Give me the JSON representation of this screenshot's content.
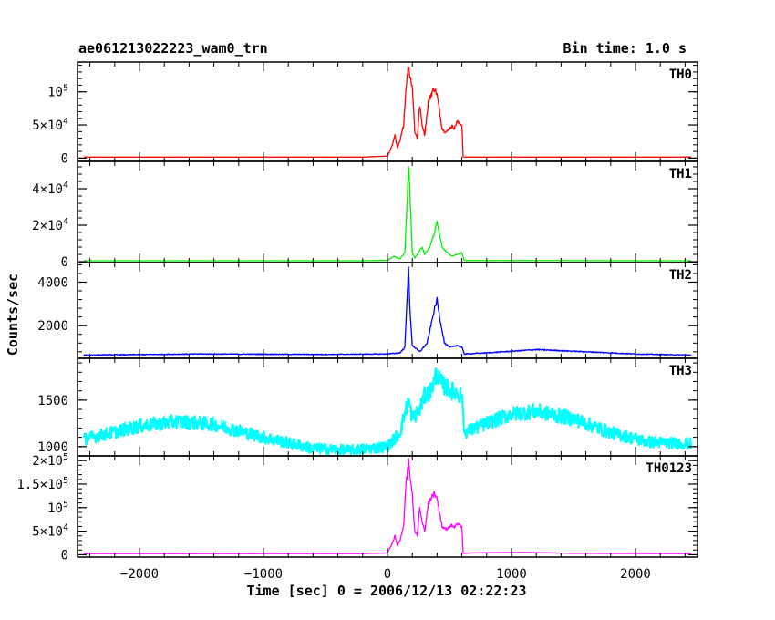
{
  "header": {
    "title": "ae061213022223_wam0_trn",
    "bin_time": "Bin time: 1.0 s"
  },
  "chart_data": {
    "type": "line",
    "xlabel": "Time [sec] 0 = 2006/12/13 02:22:23",
    "ylabel": "Counts/sec",
    "xlim": [
      -2500,
      2500
    ],
    "x_ticks": [
      -2000,
      -1000,
      0,
      1000,
      2000
    ],
    "x_tick_labels": [
      "−2000",
      "−1000",
      "0",
      "1000",
      "2000"
    ],
    "panels": [
      {
        "name": "TH0",
        "color": "#ff0000",
        "ylim": [
          -5000,
          145000
        ],
        "y_ticks": [
          0,
          50000,
          100000
        ],
        "y_tick_labels": [
          {
            "base": "0",
            "exp": ""
          },
          {
            "base": "5×10",
            "exp": "4"
          },
          {
            "base": "10",
            "exp": "5"
          }
        ],
        "series": {
          "x": [
            -2450,
            -200,
            0,
            40,
            60,
            80,
            100,
            130,
            150,
            170,
            180,
            200,
            220,
            240,
            260,
            280,
            300,
            330,
            360,
            380,
            400,
            420,
            440,
            460,
            480,
            500,
            520,
            540,
            560,
            580,
            600,
            610,
            620,
            700,
            1200,
            2450
          ],
          "y": [
            1500,
            1500,
            3000,
            20000,
            35000,
            15000,
            25000,
            50000,
            110000,
            140000,
            125000,
            110000,
            40000,
            30000,
            80000,
            50000,
            35000,
            85000,
            100000,
            105000,
            95000,
            70000,
            45000,
            40000,
            40000,
            45000,
            48000,
            45000,
            55000,
            52000,
            50000,
            2000,
            1500,
            1500,
            1500,
            1500
          ]
        }
      },
      {
        "name": "TH1",
        "color": "#00ee00",
        "ylim": [
          -500,
          55000
        ],
        "y_ticks": [
          0,
          20000,
          40000
        ],
        "y_tick_labels": [
          {
            "base": "0",
            "exp": ""
          },
          {
            "base": "2×10",
            "exp": "4"
          },
          {
            "base": "4×10",
            "exp": "4"
          }
        ],
        "series": {
          "x": [
            -2450,
            -200,
            0,
            50,
            100,
            140,
            160,
            170,
            180,
            200,
            220,
            260,
            280,
            300,
            340,
            380,
            400,
            420,
            440,
            480,
            520,
            560,
            600,
            620,
            2450
          ],
          "y": [
            500,
            500,
            700,
            3000,
            1500,
            5000,
            35000,
            54000,
            40000,
            5000,
            2000,
            6000,
            8000,
            4000,
            8000,
            16000,
            22000,
            15000,
            8000,
            5000,
            3000,
            4000,
            5000,
            600,
            500
          ]
        }
      },
      {
        "name": "TH2",
        "color": "#0000ff",
        "ylim": [
          500,
          4900
        ],
        "y_ticks": [
          2000,
          4000
        ],
        "y_tick_labels": [
          {
            "base": "2000",
            "exp": ""
          },
          {
            "base": "4000",
            "exp": ""
          }
        ],
        "series": {
          "x": [
            -2450,
            -1500,
            -500,
            0,
            100,
            140,
            160,
            170,
            180,
            200,
            260,
            320,
            380,
            400,
            420,
            460,
            500,
            560,
            600,
            620,
            800,
            1200,
            1600,
            2000,
            2450
          ],
          "y": [
            650,
            700,
            680,
            700,
            750,
            1000,
            3500,
            4800,
            2800,
            1100,
            800,
            1200,
            2800,
            3200,
            2400,
            1200,
            1000,
            1100,
            1000,
            700,
            750,
            900,
            800,
            700,
            650
          ]
        }
      },
      {
        "name": "TH3",
        "color": "#00ffff",
        "ylim": [
          900,
          1950
        ],
        "y_ticks": [
          1000,
          1500
        ],
        "y_tick_labels": [
          {
            "base": "1000",
            "exp": ""
          },
          {
            "base": "1500",
            "exp": ""
          }
        ],
        "series": {
          "x": [
            -2450,
            -2000,
            -1700,
            -1400,
            -1000,
            -600,
            -300,
            0,
            100,
            170,
            200,
            260,
            300,
            350,
            400,
            420,
            460,
            520,
            600,
            620,
            800,
            1000,
            1200,
            1500,
            1800,
            2100,
            2450
          ],
          "y": [
            1080,
            1220,
            1270,
            1240,
            1100,
            980,
            960,
            1000,
            1150,
            1500,
            1300,
            1400,
            1550,
            1600,
            1800,
            1700,
            1650,
            1600,
            1550,
            1150,
            1250,
            1350,
            1380,
            1300,
            1150,
            1050,
            1030
          ]
        }
      },
      {
        "name": "TH0123",
        "color": "#ff00ff",
        "ylim": [
          -5000,
          210000
        ],
        "y_ticks": [
          0,
          50000,
          100000,
          150000,
          200000
        ],
        "y_tick_labels": [
          {
            "base": "0",
            "exp": ""
          },
          {
            "base": "5×10",
            "exp": "4"
          },
          {
            "base": "10",
            "exp": "5"
          },
          {
            "base": "1.5×10",
            "exp": "5"
          },
          {
            "base": "2×10",
            "exp": "5"
          }
        ],
        "series": {
          "x": [
            -2450,
            -200,
            0,
            40,
            60,
            80,
            100,
            130,
            150,
            170,
            180,
            200,
            220,
            240,
            260,
            280,
            300,
            330,
            360,
            380,
            400,
            420,
            440,
            460,
            480,
            500,
            520,
            540,
            560,
            580,
            600,
            610,
            620,
            700,
            1100,
            1500,
            2450
          ],
          "y": [
            2500,
            2500,
            4000,
            25000,
            40000,
            20000,
            30000,
            60000,
            150000,
            195000,
            170000,
            130000,
            50000,
            40000,
            100000,
            70000,
            50000,
            110000,
            125000,
            130000,
            120000,
            90000,
            60000,
            55000,
            55000,
            60000,
            62000,
            58000,
            65000,
            62000,
            60000,
            3000,
            3000,
            4000,
            5000,
            3000,
            2500
          ]
        }
      }
    ]
  }
}
